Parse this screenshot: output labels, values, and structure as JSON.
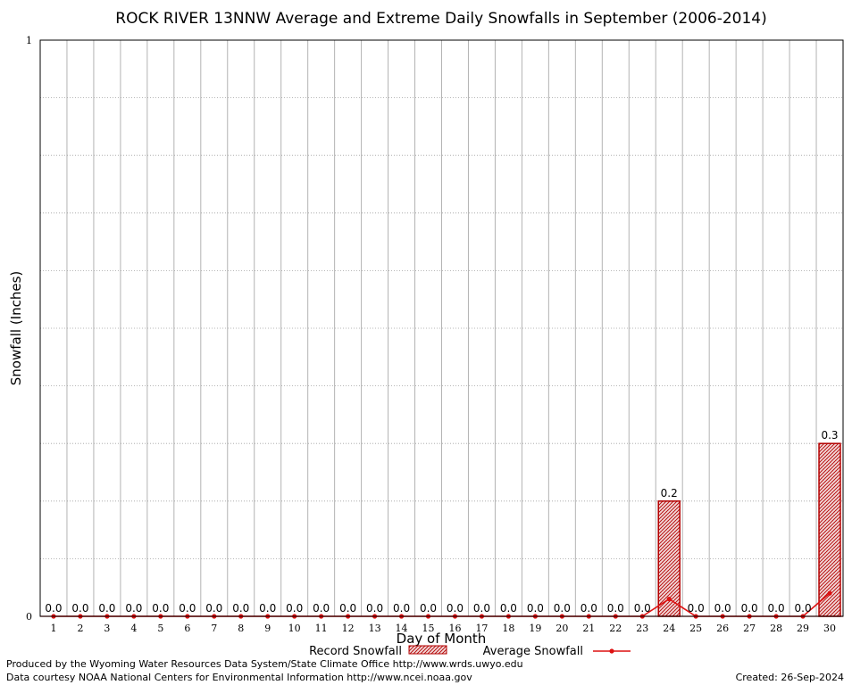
{
  "chart_data": {
    "type": "bar",
    "title": "ROCK RIVER 13NNW Average and Extreme Daily Snowfalls in September (2006-2014)",
    "xlabel": "Day of Month",
    "ylabel": "Snowfall (Inches)",
    "ylim": [
      0,
      1
    ],
    "y_ticks": [
      "0",
      "1"
    ],
    "grid": true,
    "categories": [
      "1",
      "2",
      "3",
      "4",
      "5",
      "6",
      "7",
      "8",
      "9",
      "10",
      "11",
      "12",
      "13",
      "14",
      "15",
      "16",
      "17",
      "18",
      "19",
      "20",
      "21",
      "22",
      "23",
      "24",
      "25",
      "26",
      "27",
      "28",
      "29",
      "30"
    ],
    "series": [
      {
        "name": "Record Snowfall",
        "kind": "bar",
        "color": "#cc0000",
        "values": [
          0,
          0,
          0,
          0,
          0,
          0,
          0,
          0,
          0,
          0,
          0,
          0,
          0,
          0,
          0,
          0,
          0,
          0,
          0,
          0,
          0,
          0,
          0,
          0.2,
          0,
          0,
          0,
          0,
          0,
          0.3
        ],
        "labels": [
          "0.0",
          "0.0",
          "0.0",
          "0.0",
          "0.0",
          "0.0",
          "0.0",
          "0.0",
          "0.0",
          "0.0",
          "0.0",
          "0.0",
          "0.0",
          "0.0",
          "0.0",
          "0.0",
          "0.0",
          "0.0",
          "0.0",
          "0.0",
          "0.0",
          "0.0",
          "0.0",
          "0.2",
          "0.0",
          "0.0",
          "0.0",
          "0.0",
          "0.0",
          "0.3"
        ]
      },
      {
        "name": "Average Snowfall",
        "kind": "line",
        "color": "#dd1111",
        "values": [
          0,
          0,
          0,
          0,
          0,
          0,
          0,
          0,
          0,
          0,
          0,
          0,
          0,
          0,
          0,
          0,
          0,
          0,
          0,
          0,
          0,
          0,
          0,
          0.03,
          0,
          0,
          0,
          0,
          0,
          0.04
        ]
      }
    ],
    "legend_position": "bottom-center"
  },
  "footer": {
    "produced_by": "Produced by the Wyoming Water Resources Data System/State Climate Office http://www.wrds.uwyo.edu",
    "data_courtesy": "Data courtesy NOAA National Centers for Environmental Information http://www.ncei.noaa.gov",
    "created": "Created:  26-Sep-2024"
  }
}
